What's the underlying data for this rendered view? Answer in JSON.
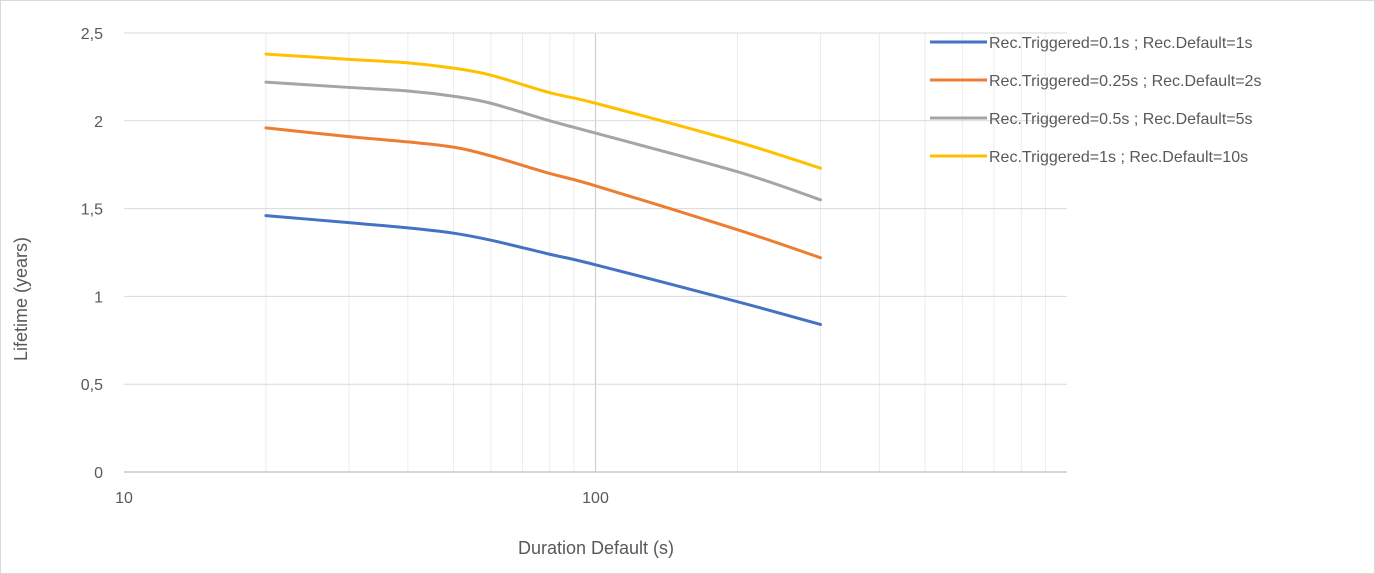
{
  "chart_data": {
    "type": "line",
    "title": "",
    "xlabel": "Duration Default (s)",
    "ylabel": "Lifetime (years)",
    "x_scale": "log",
    "xlim": [
      10,
      1000
    ],
    "ylim": [
      0,
      2.5
    ],
    "x_ticks": [
      "10",
      "100"
    ],
    "y_ticks": [
      "0",
      "0,5",
      "1",
      "1,5",
      "2",
      "2,5"
    ],
    "grid": true,
    "legend_position": "top-right",
    "series": [
      {
        "name": "Rec.Triggered=0.1s ; Rec.Default=1s",
        "color": "#4472C4",
        "x": [
          20,
          30,
          40,
          50,
          60,
          80,
          100,
          200,
          300
        ],
        "y": [
          1.46,
          1.42,
          1.39,
          1.36,
          1.32,
          1.24,
          1.18,
          0.97,
          0.84
        ]
      },
      {
        "name": "Rec.Triggered=0.25s ; Rec.Default=2s",
        "color": "#ED7D31",
        "x": [
          20,
          30,
          40,
          50,
          60,
          80,
          100,
          200,
          300
        ],
        "y": [
          1.96,
          1.91,
          1.88,
          1.85,
          1.8,
          1.7,
          1.63,
          1.38,
          1.22
        ]
      },
      {
        "name": "Rec.Triggered=0.5s ; Rec.Default=5s",
        "color": "#A5A5A5",
        "x": [
          20,
          30,
          40,
          50,
          60,
          80,
          100,
          200,
          300
        ],
        "y": [
          2.22,
          2.19,
          2.17,
          2.14,
          2.1,
          2.0,
          1.93,
          1.71,
          1.55
        ]
      },
      {
        "name": "Rec.Triggered=1s ; Rec.Default=10s",
        "color": "#FFC000",
        "x": [
          20,
          30,
          40,
          50,
          60,
          80,
          100,
          200,
          300
        ],
        "y": [
          2.38,
          2.35,
          2.33,
          2.3,
          2.26,
          2.16,
          2.1,
          1.88,
          1.73
        ]
      }
    ]
  }
}
